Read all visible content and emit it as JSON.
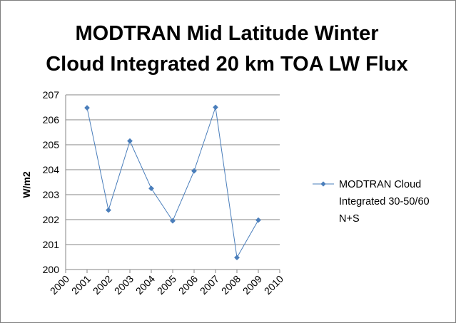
{
  "chart_data": {
    "type": "line",
    "title_lines": [
      "MODTRAN Mid Latitude Winter",
      "Cloud Integrated 20 km TOA LW Flux"
    ],
    "xlabel": "",
    "ylabel": "W/m2",
    "x_ticks": [
      "2000",
      "2001",
      "2002",
      "2003",
      "2004",
      "2005",
      "2006",
      "2007",
      "2008",
      "2009",
      "2010"
    ],
    "xlim": [
      2000,
      2010
    ],
    "y_ticks": [
      "200",
      "201",
      "202",
      "203",
      "204",
      "205",
      "206",
      "207"
    ],
    "ylim": [
      200,
      207
    ],
    "grid": "horizontal",
    "legend_position": "right",
    "series": [
      {
        "name": "MODTRAN Cloud Integrated 30-50/60 N+S",
        "legend_lines": [
          "MODTRAN Cloud",
          "Integrated 30-50/60",
          "N+S"
        ],
        "color": "#4a7ebb",
        "x": [
          2001,
          2002,
          2003,
          2004,
          2005,
          2006,
          2007,
          2008,
          2009
        ],
        "y": [
          206.48,
          202.38,
          205.15,
          203.25,
          201.95,
          203.95,
          206.5,
          200.48,
          201.98
        ]
      }
    ]
  }
}
